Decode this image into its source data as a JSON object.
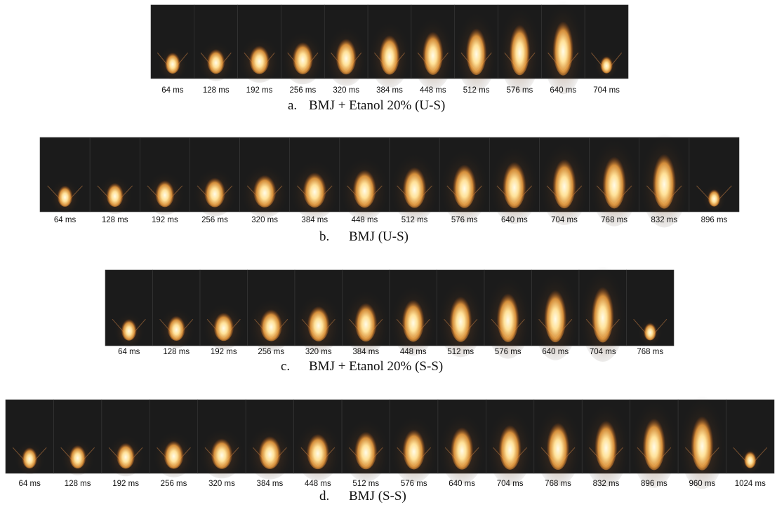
{
  "panels": [
    {
      "label": "a.",
      "caption": "BMJ + Etanol 20% (U-S)",
      "frames": [
        "64 ms",
        "128 ms",
        "192 ms",
        "256 ms",
        "320 ms",
        "384 ms",
        "448 ms",
        "512 ms",
        "576 ms",
        "640 ms",
        "704 ms"
      ]
    },
    {
      "label": "b.",
      "caption": "BMJ (U-S)",
      "frames": [
        "64 ms",
        "128 ms",
        "192 ms",
        "256 ms",
        "320 ms",
        "384 ms",
        "448 ms",
        "512 ms",
        "576 ms",
        "640 ms",
        "704 ms",
        "768 ms",
        "832 ms",
        "896 ms"
      ]
    },
    {
      "label": "c.",
      "caption": "BMJ + Etanol 20% (S-S)",
      "frames": [
        "64 ms",
        "128 ms",
        "192 ms",
        "256 ms",
        "320 ms",
        "384 ms",
        "448 ms",
        "512 ms",
        "576 ms",
        "640 ms",
        "704 ms",
        "768 ms"
      ]
    },
    {
      "label": "d.",
      "caption": "BMJ (S-S)",
      "frames": [
        "64 ms",
        "128 ms",
        "192 ms",
        "256 ms",
        "320 ms",
        "384 ms",
        "448 ms",
        "512 ms",
        "576 ms",
        "640 ms",
        "704 ms",
        "768 ms",
        "832 ms",
        "896 ms",
        "960 ms",
        "1024 ms"
      ]
    }
  ]
}
